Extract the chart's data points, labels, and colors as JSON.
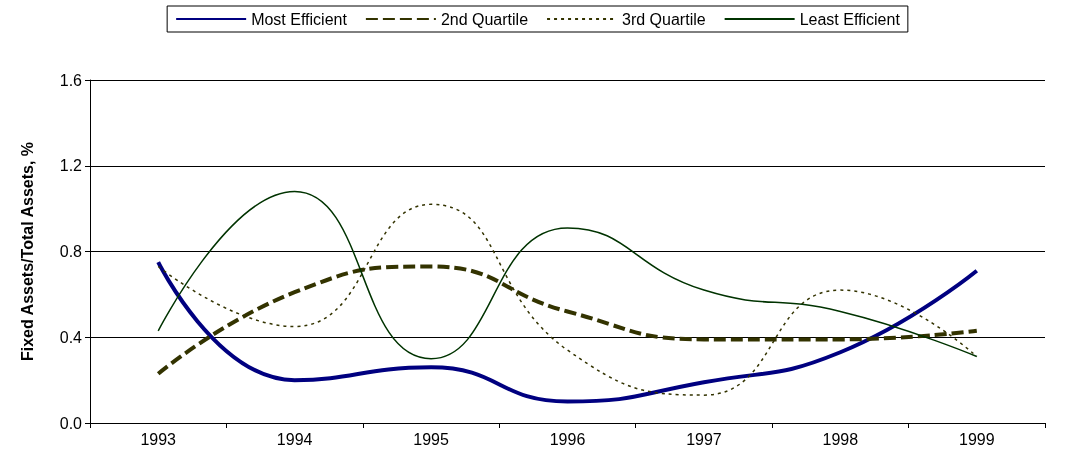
{
  "chart_data": {
    "type": "line",
    "ylabel": "Fixed Assets/Total Assets, %",
    "categories": [
      "1993",
      "1994",
      "1995",
      "1996",
      "1997",
      "1998",
      "1999"
    ],
    "series": [
      {
        "name": "Most Efficient",
        "color": "#000080",
        "line_style": "solid",
        "values": [
          0.75,
          0.2,
          0.26,
          0.1,
          0.19,
          0.33,
          0.71
        ]
      },
      {
        "name": "2nd Quartile",
        "color": "#333300",
        "line_style": "dashed",
        "values": [
          0.23,
          0.61,
          0.73,
          0.52,
          0.39,
          0.39,
          0.43
        ]
      },
      {
        "name": "3rd Quartile",
        "color": "#333300",
        "line_style": "dotted",
        "values": [
          0.73,
          0.45,
          1.02,
          0.34,
          0.13,
          0.62,
          0.31
        ]
      },
      {
        "name": "Least Efficient",
        "color": "#003300",
        "line_style": "solid",
        "values": [
          0.43,
          1.08,
          0.3,
          0.91,
          0.62,
          0.52,
          0.31
        ]
      }
    ],
    "ylim": [
      0,
      1.6
    ],
    "yticks": [
      {
        "value": 0,
        "label": "0.0"
      },
      {
        "value": 0.4,
        "label": "0.4"
      },
      {
        "value": 0.8,
        "label": "0.8"
      },
      {
        "value": 1.2,
        "label": "1.2"
      },
      {
        "value": 1.6,
        "label": "1.6"
      }
    ],
    "grid": "y",
    "legend": "top",
    "marker": "none"
  }
}
